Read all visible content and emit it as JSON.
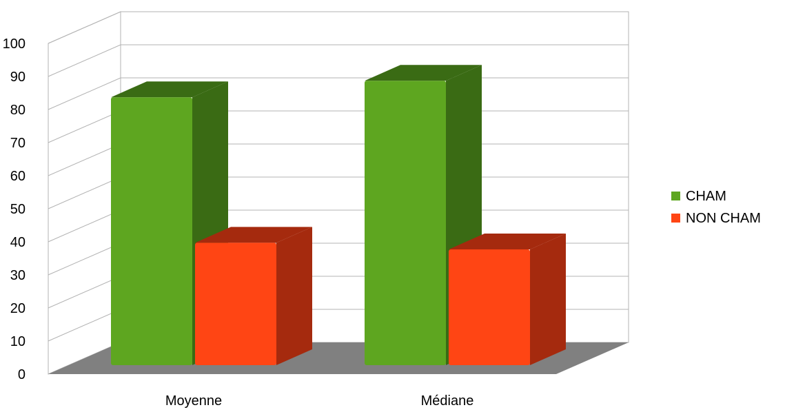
{
  "chart_data": {
    "type": "bar",
    "title": "",
    "xlabel": "",
    "ylabel": "",
    "categories": [
      "Moyenne",
      "Médiane"
    ],
    "series": [
      {
        "name": "CHAM",
        "values": [
          81,
          86
        ],
        "color": "#5ea620",
        "side_color": "#3a6b14"
      },
      {
        "name": "NON CHAM",
        "values": [
          37,
          35
        ],
        "color": "#ff4514",
        "side_color": "#a52a0e"
      }
    ],
    "ylim": [
      0,
      100
    ],
    "yticks": [
      0,
      10,
      20,
      30,
      40,
      50,
      60,
      70,
      80,
      90,
      100
    ],
    "grid": true,
    "legend_position": "right",
    "floor_color": "#808080",
    "bar_style": "3d"
  }
}
